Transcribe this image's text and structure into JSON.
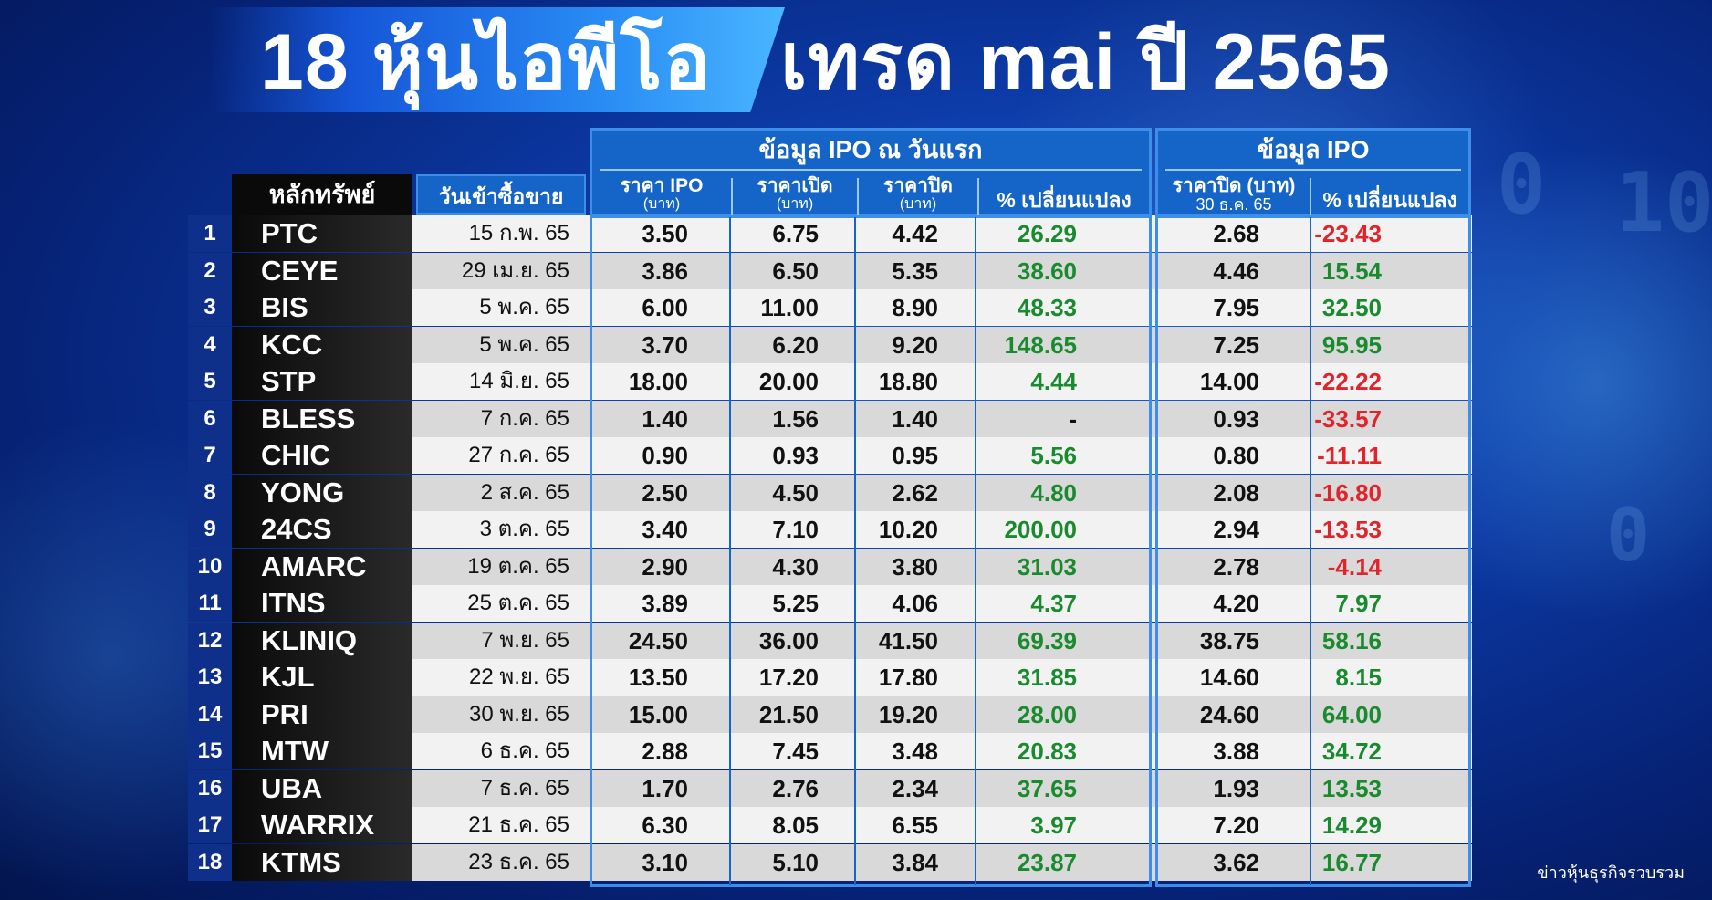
{
  "title": {
    "left": "18 หุ้นไอพีโอ",
    "right": "เทรด mai ปี 2565"
  },
  "headers": {
    "security": "หลักทรัพย์",
    "date": "วันเข้าซื้อขาย",
    "group1": "ข้อมูล IPO ณ วันแรก",
    "ipo_price": {
      "l1": "ราคา IPO",
      "l2": "(บาท)"
    },
    "open_price": {
      "l1": "ราคาเปิด",
      "l2": "(บาท)"
    },
    "close_price": {
      "l1": "ราคาปิด",
      "l2": "(บาท)"
    },
    "pct_change": "% เปลี่ยนแปลง",
    "group2": "ข้อมูล IPO",
    "close_dec": {
      "l1": "ราคาปิด (บาท)",
      "l2": "30 ธ.ค. 65"
    },
    "pct_change2": "% เปลี่ยนแปลง"
  },
  "colors": {
    "positive": "#1a8a2e",
    "negative": "#e0242b",
    "header_blue": "#1564c8"
  },
  "rows": [
    {
      "no": "1",
      "sec": "PTC",
      "date": "15 ก.พ. 65",
      "ipo": "3.50",
      "open": "6.75",
      "close": "4.42",
      "pct": "26.29",
      "close2": "2.68",
      "pct2": "-23.43",
      "trend2": "neg"
    },
    {
      "no": "2",
      "sec": "CEYE",
      "date": "29 เม.ย. 65",
      "ipo": "3.86",
      "open": "6.50",
      "close": "5.35",
      "pct": "38.60",
      "close2": "4.46",
      "pct2": "15.54",
      "trend2": "pos"
    },
    {
      "no": "3",
      "sec": "BIS",
      "date": "5 พ.ค. 65",
      "ipo": "6.00",
      "open": "11.00",
      "close": "8.90",
      "pct": "48.33",
      "close2": "7.95",
      "pct2": "32.50",
      "trend2": "pos"
    },
    {
      "no": "4",
      "sec": "KCC",
      "date": "5 พ.ค. 65",
      "ipo": "3.70",
      "open": "6.20",
      "close": "9.20",
      "pct": "148.65",
      "close2": "7.25",
      "pct2": "95.95",
      "trend2": "pos"
    },
    {
      "no": "5",
      "sec": "STP",
      "date": "14 มิ.ย. 65",
      "ipo": "18.00",
      "open": "20.00",
      "close": "18.80",
      "pct": "4.44",
      "close2": "14.00",
      "pct2": "-22.22",
      "trend2": "neg"
    },
    {
      "no": "6",
      "sec": "BLESS",
      "date": "7 ก.ค. 65",
      "ipo": "1.40",
      "open": "1.56",
      "close": "1.40",
      "pct": "-",
      "close2": "0.93",
      "pct2": "-33.57",
      "trend2": "neg"
    },
    {
      "no": "7",
      "sec": "CHIC",
      "date": "27 ก.ค. 65",
      "ipo": "0.90",
      "open": "0.93",
      "close": "0.95",
      "pct": "5.56",
      "close2": "0.80",
      "pct2": "-11.11",
      "trend2": "neg"
    },
    {
      "no": "8",
      "sec": "YONG",
      "date": "2 ส.ค. 65",
      "ipo": "2.50",
      "open": "4.50",
      "close": "2.62",
      "pct": "4.80",
      "close2": "2.08",
      "pct2": "-16.80",
      "trend2": "neg"
    },
    {
      "no": "9",
      "sec": "24CS",
      "date": "3 ต.ค. 65",
      "ipo": "3.40",
      "open": "7.10",
      "close": "10.20",
      "pct": "200.00",
      "close2": "2.94",
      "pct2": "-13.53",
      "trend2": "neg"
    },
    {
      "no": "10",
      "sec": "AMARC",
      "date": "19 ต.ค. 65",
      "ipo": "2.90",
      "open": "4.30",
      "close": "3.80",
      "pct": "31.03",
      "close2": "2.78",
      "pct2": "-4.14",
      "trend2": "neg"
    },
    {
      "no": "11",
      "sec": "ITNS",
      "date": "25 ต.ค. 65",
      "ipo": "3.89",
      "open": "5.25",
      "close": "4.06",
      "pct": "4.37",
      "close2": "4.20",
      "pct2": "7.97",
      "trend2": "pos"
    },
    {
      "no": "12",
      "sec": "KLINIQ",
      "date": "7 พ.ย. 65",
      "ipo": "24.50",
      "open": "36.00",
      "close": "41.50",
      "pct": "69.39",
      "close2": "38.75",
      "pct2": "58.16",
      "trend2": "pos"
    },
    {
      "no": "13",
      "sec": "KJL",
      "date": "22 พ.ย. 65",
      "ipo": "13.50",
      "open": "17.20",
      "close": "17.80",
      "pct": "31.85",
      "close2": "14.60",
      "pct2": "8.15",
      "trend2": "pos"
    },
    {
      "no": "14",
      "sec": "PRI",
      "date": "30 พ.ย. 65",
      "ipo": "15.00",
      "open": "21.50",
      "close": "19.20",
      "pct": "28.00",
      "close2": "24.60",
      "pct2": "64.00",
      "trend2": "pos"
    },
    {
      "no": "15",
      "sec": "MTW",
      "date": "6 ธ.ค. 65",
      "ipo": "2.88",
      "open": "7.45",
      "close": "3.48",
      "pct": "20.83",
      "close2": "3.88",
      "pct2": "34.72",
      "trend2": "pos"
    },
    {
      "no": "16",
      "sec": "UBA",
      "date": "7 ธ.ค. 65",
      "ipo": "1.70",
      "open": "2.76",
      "close": "2.34",
      "pct": "37.65",
      "close2": "1.93",
      "pct2": "13.53",
      "trend2": "pos"
    },
    {
      "no": "17",
      "sec": "WARRIX",
      "date": "21 ธ.ค. 65",
      "ipo": "6.30",
      "open": "8.05",
      "close": "6.55",
      "pct": "3.97",
      "close2": "7.20",
      "pct2": "14.29",
      "trend2": "pos"
    },
    {
      "no": "18",
      "sec": "KTMS",
      "date": "23 ธ.ค. 65",
      "ipo": "3.10",
      "open": "5.10",
      "close": "3.84",
      "pct": "23.87",
      "close2": "3.62",
      "pct2": "16.77",
      "trend2": "pos"
    }
  ],
  "credit": "ข่าวหุ้นธุรกิจรวบรวม"
}
